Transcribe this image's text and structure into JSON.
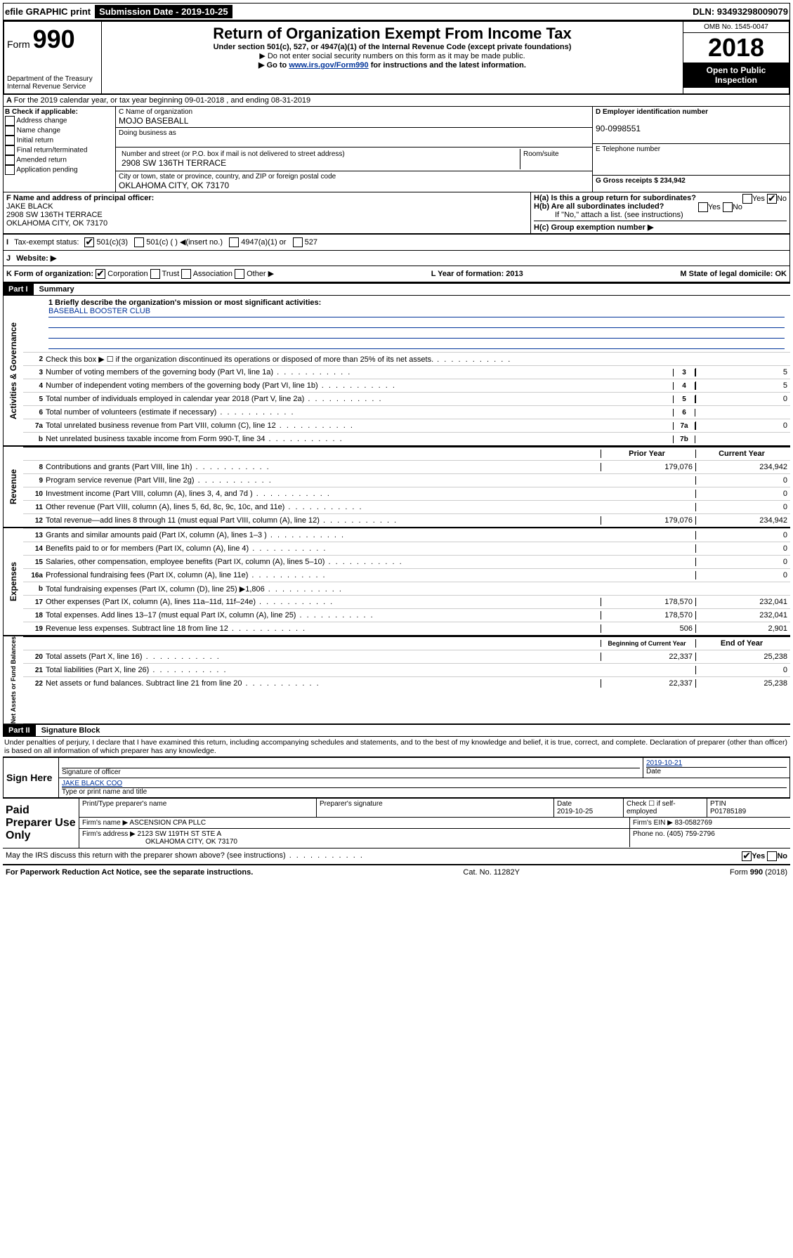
{
  "top_bar": {
    "efile": "efile GRAPHIC print",
    "submission_label": "Submission Date - 2019-10-25",
    "dln": "DLN: 93493298009079"
  },
  "header": {
    "form_label": "Form",
    "form_number": "990",
    "dept": "Department of the Treasury\nInternal Revenue Service",
    "title": "Return of Organization Exempt From Income Tax",
    "subtitle": "Under section 501(c), 527, or 4947(a)(1) of the Internal Revenue Code (except private foundations)",
    "note1": "▶ Do not enter social security numbers on this form as it may be made public.",
    "note2_pre": "▶ Go to ",
    "note2_link": "www.irs.gov/Form990",
    "note2_post": " for instructions and the latest information.",
    "omb": "OMB No. 1545-0047",
    "year": "2018",
    "open": "Open to Public Inspection"
  },
  "section_a": {
    "cal_year": "For the 2019 calendar year, or tax year beginning 09-01-2018    , and ending 08-31-2019",
    "b_label": "B Check if applicable:",
    "b_opts": [
      "Address change",
      "Name change",
      "Initial return",
      "Final return/terminated",
      "Amended return",
      "Application pending"
    ],
    "c_name_label": "C Name of organization",
    "c_name": "MOJO BASEBALL",
    "dba_label": "Doing business as",
    "addr_label": "Number and street (or P.O. box if mail is not delivered to street address)",
    "room_label": "Room/suite",
    "addr": "2908 SW 136TH TERRACE",
    "city_label": "City or town, state or province, country, and ZIP or foreign postal code",
    "city": "OKLAHOMA CITY, OK  73170",
    "d_label": "D Employer identification number",
    "d_val": "90-0998551",
    "e_label": "E Telephone number",
    "g_label": "G Gross receipts $ 234,942",
    "f_label": "F  Name and address of principal officer:",
    "f_name": "JAKE BLACK",
    "f_addr1": "2908 SW 136TH TERRACE",
    "f_addr2": "OKLAHOMA CITY, OK  73170",
    "ha": "H(a)  Is this a group return for subordinates?",
    "hb": "H(b)  Are all subordinates included?",
    "hb_note": "If \"No,\" attach a list. (see instructions)",
    "hc": "H(c)  Group exemption number ▶",
    "i_label": "Tax-exempt status:",
    "i_opts": [
      "501(c)(3)",
      "501(c) (  ) ◀(insert no.)",
      "4947(a)(1) or",
      "527"
    ],
    "j_label": "Website: ▶",
    "k_label": "K Form of organization:",
    "k_opts": [
      "Corporation",
      "Trust",
      "Association",
      "Other ▶"
    ],
    "l_label": "L Year of formation: 2013",
    "m_label": "M State of legal domicile: OK"
  },
  "part1": {
    "header": "Part I",
    "title": "Summary",
    "line1_label": "1  Briefly describe the organization's mission or most significant activities:",
    "line1_val": "BASEBALL BOOSTER CLUB",
    "gov_lines": [
      {
        "n": "2",
        "d": "Check this box ▶ ☐  if the organization discontinued its operations or disposed of more than 25% of its net assets.",
        "b": "",
        "v": ""
      },
      {
        "n": "3",
        "d": "Number of voting members of the governing body (Part VI, line 1a)",
        "b": "3",
        "v": "5"
      },
      {
        "n": "4",
        "d": "Number of independent voting members of the governing body (Part VI, line 1b)",
        "b": "4",
        "v": "5"
      },
      {
        "n": "5",
        "d": "Total number of individuals employed in calendar year 2018 (Part V, line 2a)",
        "b": "5",
        "v": "0"
      },
      {
        "n": "6",
        "d": "Total number of volunteers (estimate if necessary)",
        "b": "6",
        "v": ""
      },
      {
        "n": "7a",
        "d": "Total unrelated business revenue from Part VIII, column (C), line 12",
        "b": "7a",
        "v": "0"
      },
      {
        "n": "b",
        "d": "Net unrelated business taxable income from Form 990-T, line 34",
        "b": "7b",
        "v": ""
      }
    ],
    "col_headers": {
      "prior": "Prior Year",
      "current": "Current Year"
    },
    "rev_lines": [
      {
        "n": "8",
        "d": "Contributions and grants (Part VIII, line 1h)",
        "p": "179,076",
        "c": "234,942"
      },
      {
        "n": "9",
        "d": "Program service revenue (Part VIII, line 2g)",
        "p": "",
        "c": "0"
      },
      {
        "n": "10",
        "d": "Investment income (Part VIII, column (A), lines 3, 4, and 7d )",
        "p": "",
        "c": "0"
      },
      {
        "n": "11",
        "d": "Other revenue (Part VIII, column (A), lines 5, 6d, 8c, 9c, 10c, and 11e)",
        "p": "",
        "c": "0"
      },
      {
        "n": "12",
        "d": "Total revenue—add lines 8 through 11 (must equal Part VIII, column (A), line 12)",
        "p": "179,076",
        "c": "234,942"
      }
    ],
    "exp_lines": [
      {
        "n": "13",
        "d": "Grants and similar amounts paid (Part IX, column (A), lines 1–3 )",
        "p": "",
        "c": "0"
      },
      {
        "n": "14",
        "d": "Benefits paid to or for members (Part IX, column (A), line 4)",
        "p": "",
        "c": "0"
      },
      {
        "n": "15",
        "d": "Salaries, other compensation, employee benefits (Part IX, column (A), lines 5–10)",
        "p": "",
        "c": "0"
      },
      {
        "n": "16a",
        "d": "Professional fundraising fees (Part IX, column (A), line 11e)",
        "p": "",
        "c": "0"
      },
      {
        "n": "b",
        "d": "Total fundraising expenses (Part IX, column (D), line 25) ▶1,806",
        "p": "—",
        "c": "—"
      },
      {
        "n": "17",
        "d": "Other expenses (Part IX, column (A), lines 11a–11d, 11f–24e)",
        "p": "178,570",
        "c": "232,041"
      },
      {
        "n": "18",
        "d": "Total expenses. Add lines 13–17 (must equal Part IX, column (A), line 25)",
        "p": "178,570",
        "c": "232,041"
      },
      {
        "n": "19",
        "d": "Revenue less expenses. Subtract line 18 from line 12",
        "p": "506",
        "c": "2,901"
      }
    ],
    "net_headers": {
      "begin": "Beginning of Current Year",
      "end": "End of Year"
    },
    "net_lines": [
      {
        "n": "20",
        "d": "Total assets (Part X, line 16)",
        "p": "22,337",
        "c": "25,238"
      },
      {
        "n": "21",
        "d": "Total liabilities (Part X, line 26)",
        "p": "",
        "c": "0"
      },
      {
        "n": "22",
        "d": "Net assets or fund balances. Subtract line 21 from line 20",
        "p": "22,337",
        "c": "25,238"
      }
    ]
  },
  "part2": {
    "header": "Part II",
    "title": "Signature Block",
    "perjury": "Under penalties of perjury, I declare that I have examined this return, including accompanying schedules and statements, and to the best of my knowledge and belief, it is true, correct, and complete. Declaration of preparer (other than officer) is based on all information of which preparer has any knowledge.",
    "sign_here": "Sign Here",
    "sig_officer": "Signature of officer",
    "sig_date": "2019-10-21",
    "date_label": "Date",
    "officer_name": "JAKE BLACK COO",
    "type_name": "Type or print name and title",
    "paid": "Paid Preparer Use Only",
    "prep_name_label": "Print/Type preparer's name",
    "prep_sig_label": "Preparer's signature",
    "prep_date_label": "Date",
    "prep_date": "2019-10-25",
    "self_emp": "Check ☐ if self-employed",
    "ptin_label": "PTIN",
    "ptin": "P01785189",
    "firm_name_label": "Firm's name    ▶",
    "firm_name": "ASCENSION CPA PLLC",
    "firm_ein_label": "Firm's EIN ▶",
    "firm_ein": "83-0582769",
    "firm_addr_label": "Firm's address ▶",
    "firm_addr1": "2123 SW 119TH ST STE A",
    "firm_addr2": "OKLAHOMA CITY, OK  73170",
    "phone_label": "Phone no.",
    "phone": "(405) 759-2796",
    "discuss": "May the IRS discuss this return with the preparer shown above? (see instructions)",
    "paperwork": "For Paperwork Reduction Act Notice, see the separate instructions.",
    "cat": "Cat. No. 11282Y",
    "form_foot": "Form 990 (2018)"
  },
  "side_labels": {
    "gov": "Activities & Governance",
    "rev": "Revenue",
    "exp": "Expenses",
    "net": "Net Assets or Fund Balances"
  }
}
